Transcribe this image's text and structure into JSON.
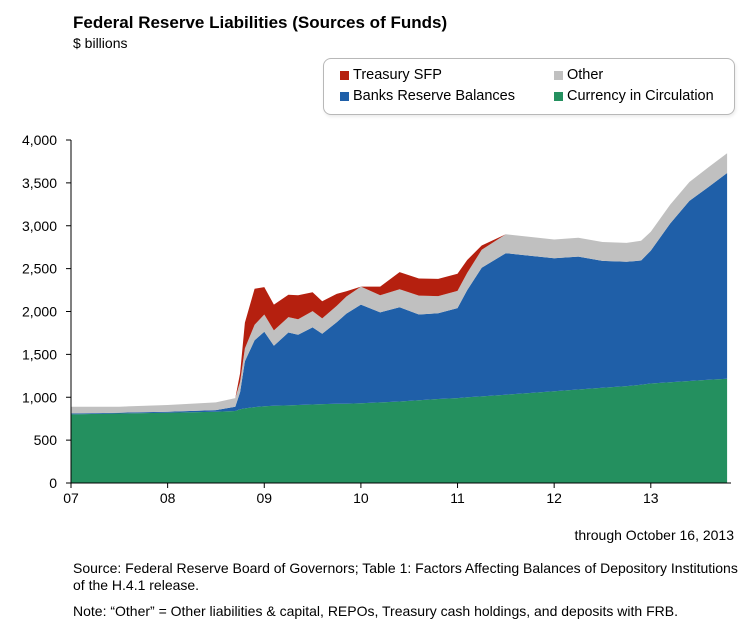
{
  "title": "Federal Reserve Liabilities (Sources of Funds)",
  "subtitle": "$ billions",
  "through": "through October 16, 2013",
  "source": "Source: Federal Reserve Board of Governors; Table 1: Factors Affecting Balances of Depository Institutions of the H.4.1 release.",
  "note": "Note: “Other” = Other liabilities & capital, REPOs, Treasury cash holdings, and deposits with FRB.",
  "colors": {
    "treasury_sfp": "#b5200f",
    "other": "#c0c0c0",
    "banks_reserve": "#1f5fa8",
    "currency": "#24905f"
  },
  "chart_data": {
    "type": "area",
    "stacked": true,
    "x_label_unit": "year",
    "xlim": [
      2007.0,
      2013.83
    ],
    "ylim": [
      0,
      4000
    ],
    "yticks": [
      0,
      500,
      1000,
      1500,
      2000,
      2500,
      3000,
      3500,
      4000
    ],
    "ytick_labels": [
      "0",
      "500",
      "1,000",
      "1,500",
      "2,000",
      "2,500",
      "3,000",
      "3,500",
      "4,000"
    ],
    "xticks": [
      2007,
      2008,
      2009,
      2010,
      2011,
      2012,
      2013
    ],
    "xtick_labels": [
      "07",
      "08",
      "09",
      "10",
      "11",
      "12",
      "13"
    ],
    "legend_position": "top-right",
    "legend_order": [
      "Treasury SFP",
      "Other",
      "Banks Reserve Balances",
      "Currency in Circulation"
    ],
    "x": [
      2007.0,
      2007.5,
      2008.0,
      2008.5,
      2008.7,
      2008.75,
      2008.8,
      2008.9,
      2009.0,
      2009.1,
      2009.25,
      2009.35,
      2009.5,
      2009.6,
      2009.75,
      2009.85,
      2010.0,
      2010.2,
      2010.4,
      2010.6,
      2010.8,
      2011.0,
      2011.1,
      2011.25,
      2011.5,
      2011.75,
      2012.0,
      2012.25,
      2012.5,
      2012.75,
      2012.9,
      2013.0,
      2013.2,
      2013.4,
      2013.6,
      2013.79
    ],
    "series": [
      {
        "name": "Currency in Circulation",
        "values": [
          800,
          810,
          820,
          830,
          840,
          860,
          870,
          885,
          895,
          900,
          905,
          910,
          915,
          920,
          925,
          925,
          930,
          940,
          950,
          965,
          980,
          990,
          1000,
          1010,
          1030,
          1050,
          1070,
          1090,
          1110,
          1130,
          1145,
          1160,
          1175,
          1190,
          1205,
          1215
        ]
      },
      {
        "name": "Banks Reserve Balances",
        "values": [
          10,
          10,
          10,
          20,
          50,
          200,
          550,
          780,
          870,
          700,
          850,
          820,
          900,
          820,
          950,
          1050,
          1150,
          1050,
          1100,
          1000,
          1000,
          1050,
          1250,
          1500,
          1650,
          1600,
          1550,
          1550,
          1480,
          1450,
          1450,
          1550,
          1850,
          2100,
          2250,
          2400
        ]
      },
      {
        "name": "Other",
        "values": [
          80,
          70,
          80,
          90,
          100,
          120,
          150,
          180,
          200,
          180,
          180,
          180,
          190,
          180,
          190,
          200,
          210,
          200,
          210,
          220,
          200,
          200,
          200,
          210,
          220,
          220,
          220,
          220,
          220,
          220,
          230,
          220,
          220,
          220,
          230,
          230
        ]
      },
      {
        "name": "Treasury SFP",
        "values": [
          0,
          0,
          0,
          0,
          0,
          100,
          300,
          420,
          320,
          300,
          260,
          280,
          220,
          200,
          140,
          60,
          0,
          100,
          200,
          200,
          200,
          200,
          150,
          50,
          0,
          0,
          0,
          0,
          0,
          0,
          0,
          0,
          0,
          0,
          0,
          0
        ]
      }
    ]
  }
}
